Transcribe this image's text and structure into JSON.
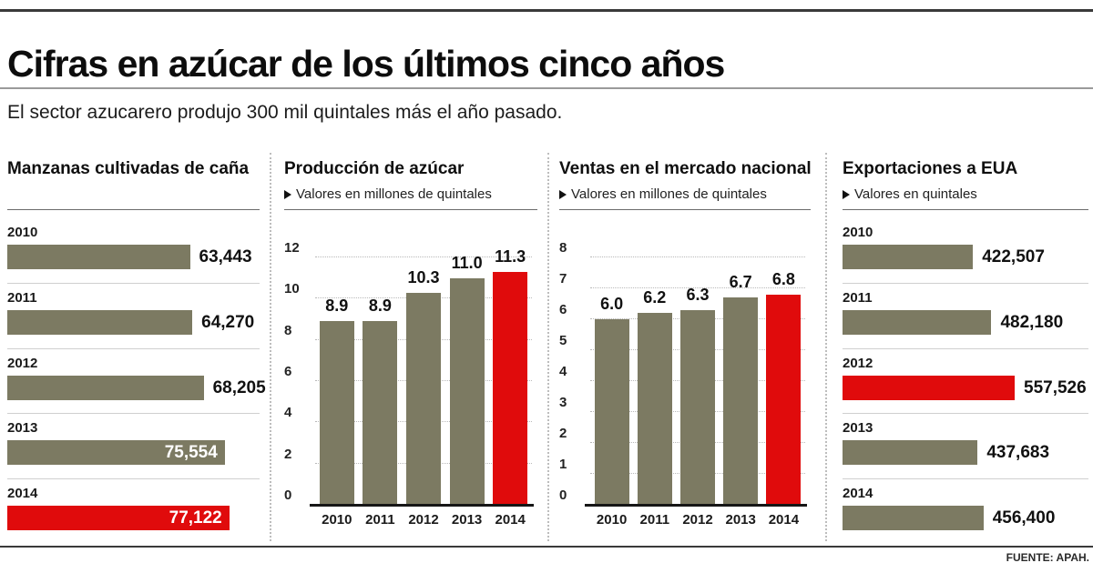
{
  "header": {
    "title": "Cifras en azúcar de los últimos cinco años",
    "subtitle": "El sector azucarero produjo 300 mil quintales más el año pasado."
  },
  "footer": {
    "source": "FUENTE: APAH."
  },
  "colors": {
    "bar_default": "#7c7a62",
    "bar_highlight": "#e00b0c",
    "grid": "#b9b9b9",
    "separator": "#cfcfcf",
    "rule_dark": "#3a3a3a"
  },
  "chart_data": [
    {
      "type": "bar",
      "orientation": "horizontal",
      "title": "Manzanas cultivadas de caña",
      "subtitle": "",
      "categories": [
        "2010",
        "2011",
        "2012",
        "2013",
        "2014"
      ],
      "values": [
        63443,
        64270,
        68205,
        75554,
        77122
      ],
      "value_labels": [
        "63,443",
        "64,270",
        "68,205",
        "75,554",
        "77,122"
      ],
      "highlight_index": 4,
      "value_inside": [
        false,
        false,
        false,
        true,
        true
      ],
      "max_bar_pct": 88,
      "legend": "none",
      "grid": "row-separators"
    },
    {
      "type": "bar",
      "orientation": "vertical",
      "title": "Producción de azúcar",
      "subtitle": "Valores en millones de quintales",
      "categories": [
        "2010",
        "2011",
        "2012",
        "2013",
        "2014"
      ],
      "values": [
        8.9,
        8.9,
        10.3,
        11.0,
        11.3
      ],
      "value_labels": [
        "8.9",
        "8.9",
        "10.3",
        "11.0",
        "11.3"
      ],
      "highlight_index": 4,
      "ylim": [
        0,
        12
      ],
      "yticks": [
        12,
        10,
        8,
        6,
        4,
        2,
        0
      ],
      "legend": "none",
      "grid": "dotted-horizontal"
    },
    {
      "type": "bar",
      "orientation": "vertical",
      "title": "Ventas en el mercado nacional",
      "subtitle": "Valores en millones de quintales",
      "categories": [
        "2010",
        "2011",
        "2012",
        "2013",
        "2014"
      ],
      "values": [
        6.0,
        6.2,
        6.3,
        6.7,
        6.8
      ],
      "value_labels": [
        "6.0",
        "6.2",
        "6.3",
        "6.7",
        "6.8"
      ],
      "highlight_index": 4,
      "ylim": [
        0,
        8
      ],
      "yticks": [
        8,
        7,
        6,
        5,
        4,
        3,
        2,
        1,
        0
      ],
      "legend": "none",
      "grid": "dotted-horizontal"
    },
    {
      "type": "bar",
      "orientation": "horizontal",
      "title": "Exportaciones a EUA",
      "subtitle": "Valores en quintales",
      "categories": [
        "2010",
        "2011",
        "2012",
        "2013",
        "2014"
      ],
      "values": [
        422507,
        482180,
        557526,
        437683,
        456400
      ],
      "value_labels": [
        "422,507",
        "482,180",
        "557,526",
        "437,683",
        "456,400"
      ],
      "highlight_index": 2,
      "value_inside": [
        false,
        false,
        false,
        false,
        false
      ],
      "max_bar_pct": 70,
      "legend": "none",
      "grid": "row-separators"
    }
  ]
}
